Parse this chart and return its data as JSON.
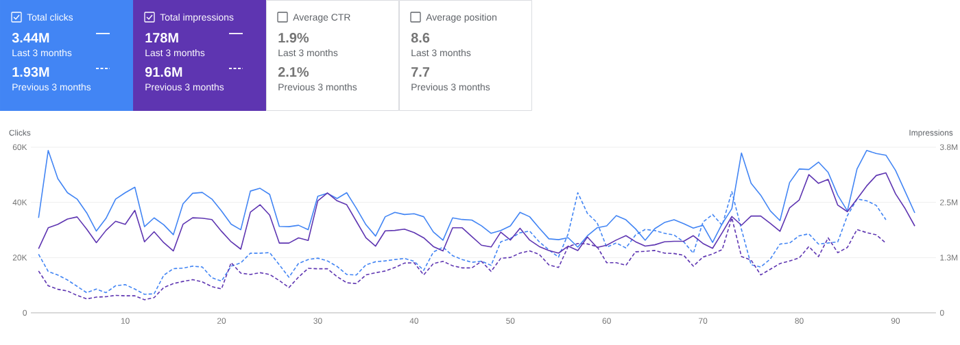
{
  "chart_data": [
    {
      "type": "other",
      "title": "Total clicks",
      "annotations": [
        "3.44M",
        "Last 3 months",
        "1.93M",
        "Previous 3 months"
      ],
      "color": "#4285f4"
    },
    {
      "type": "other",
      "title": "Total impressions",
      "annotations": [
        "178M",
        "Last 3 months",
        "91.6M",
        "Previous 3 months"
      ],
      "color": "#5e35b1"
    },
    {
      "type": "other",
      "title": "Average CTR",
      "annotations": [
        "1.9%",
        "Last 3 months",
        "2.1%",
        "Previous 3 months"
      ]
    },
    {
      "type": "other",
      "title": "Average position",
      "annotations": [
        "8.6",
        "Last 3 months",
        "7.7",
        "Previous 3 months"
      ]
    },
    {
      "type": "line",
      "ylabel": "Clicks",
      "y2label": "Impressions",
      "grid": "y",
      "xlim": [
        0.2,
        94.2
      ],
      "xticks": [
        10,
        20,
        30,
        40,
        50,
        60,
        70,
        80,
        90
      ],
      "ylim": [
        0,
        60000
      ],
      "yticks": [
        0,
        {
          "value": 20000,
          "label": "20K"
        },
        {
          "value": 40000,
          "label": "40K"
        },
        {
          "value": 60000,
          "label": "60K"
        }
      ],
      "y2lim": [
        0,
        3800000
      ],
      "y2ticks": [
        0,
        {
          "value": 1266667,
          "label": "1.3M"
        },
        {
          "value": 2533333,
          "label": "2.5M"
        },
        {
          "value": 3800000,
          "label": "3.8M"
        }
      ],
      "x": [
        1,
        2,
        3,
        4,
        5,
        6,
        7,
        8,
        9,
        10,
        11,
        12,
        13,
        14,
        15,
        16,
        17,
        18,
        19,
        20,
        21,
        22,
        23,
        24,
        25,
        26,
        27,
        28,
        29,
        30,
        31,
        32,
        33,
        34,
        35,
        36,
        37,
        38,
        39,
        40,
        41,
        42,
        43,
        44,
        45,
        46,
        47,
        48,
        49,
        50,
        51,
        52,
        53,
        54,
        55,
        56,
        57,
        58,
        59,
        60,
        61,
        62,
        63,
        64,
        65,
        66,
        67,
        68,
        69,
        70,
        71,
        72,
        73,
        74,
        75,
        76,
        77,
        78,
        79,
        80,
        81,
        82,
        83,
        84,
        85,
        86,
        87,
        88,
        89,
        90,
        91,
        92
      ],
      "series": [
        {
          "color": "#4285f4",
          "line_style": "solid",
          "values": [
            34400.0,
            58800.0,
            48600.0,
            43500.0,
            41200.0,
            36200.0,
            29600.0,
            34200.0,
            41200.0,
            43500.0,
            45500.0,
            31200.0,
            34400.0,
            31900.0,
            28300.0,
            39500.0,
            43300.0,
            43600.0,
            41200.0,
            36900.0,
            32100.0,
            30100.0,
            44100.0,
            45100.0,
            42900.0,
            31300.0,
            31200.0,
            31700.0,
            30100.0,
            42200.0,
            43300.0,
            41400.0,
            43500.0,
            37900.0,
            31900.0,
            27800.0,
            34800.0,
            36400.0,
            35600.0,
            35900.0,
            34800.0,
            29300.0,
            26300.0,
            34400.0,
            33800.0,
            33600.0,
            31500.0,
            28800.0,
            29800.0,
            31500.0,
            36400.0,
            34800.0,
            30700.0,
            26800.0,
            26500.0,
            27200.0,
            23800.0,
            27900.0,
            30800.0,
            31500.0,
            35200.0,
            33700.0,
            30400.0,
            26300.0,
            30500.0,
            32700.0,
            33700.0,
            32300.0,
            30700.0,
            31700.0,
            25500.0,
            32300.0,
            37700.0,
            57900.0,
            46900.0,
            42600.0,
            36900.0,
            33400.0,
            47200.0,
            52100.0,
            51900.0,
            54600.0,
            50900.0,
            42600.0,
            36900.0,
            52100.0,
            58800.0,
            57700.0,
            57100.0,
            51600.0,
            43900.0,
            36200.0
          ]
        },
        {
          "color": "#5e35b1",
          "line_style": "solid",
          "axis": "y2",
          "values": [
            1470000.0,
            1950000.0,
            2030000.0,
            2150000.0,
            2200000.0,
            1920000.0,
            1610000.0,
            1890000.0,
            2100000.0,
            2030000.0,
            2350000.0,
            1630000.0,
            1860000.0,
            1610000.0,
            1420000.0,
            2030000.0,
            2180000.0,
            2170000.0,
            2140000.0,
            1870000.0,
            1630000.0,
            1460000.0,
            2310000.0,
            2480000.0,
            2240000.0,
            1600000.0,
            1600000.0,
            1720000.0,
            1660000.0,
            2570000.0,
            2750000.0,
            2570000.0,
            2480000.0,
            2100000.0,
            1720000.0,
            1530000.0,
            1880000.0,
            1890000.0,
            1920000.0,
            1840000.0,
            1720000.0,
            1520000.0,
            1420000.0,
            1950000.0,
            1950000.0,
            1750000.0,
            1550000.0,
            1510000.0,
            1850000.0,
            1670000.0,
            1940000.0,
            1670000.0,
            1520000.0,
            1430000.0,
            1370000.0,
            1530000.0,
            1430000.0,
            1740000.0,
            1500000.0,
            1550000.0,
            1670000.0,
            1770000.0,
            1630000.0,
            1530000.0,
            1560000.0,
            1630000.0,
            1640000.0,
            1640000.0,
            1770000.0,
            1590000.0,
            1480000.0,
            1840000.0,
            2210000.0,
            2010000.0,
            2220000.0,
            2220000.0,
            2050000.0,
            1870000.0,
            2410000.0,
            2590000.0,
            3170000.0,
            2970000.0,
            3060000.0,
            2470000.0,
            2320000.0,
            2610000.0,
            2910000.0,
            3150000.0,
            3210000.0,
            2730000.0,
            2390000.0,
            1990000.0
          ]
        },
        {
          "color": "#4285f4",
          "line_style": "dashed",
          "values": [
            21200.0,
            15000.0,
            13700.0,
            11900.0,
            9600.0,
            7300.0,
            8600.0,
            7300.0,
            9800.0,
            10200.0,
            8600.0,
            6700.0,
            6900.0,
            13600.0,
            16000.0,
            16200.0,
            16900.0,
            16600.0,
            12700.0,
            11500.0,
            16900.0,
            18100.0,
            21600.0,
            21600.0,
            21800.0,
            17400.0,
            12900.0,
            17900.0,
            19300.0,
            19800.0,
            18800.0,
            16800.0,
            13900.0,
            13700.0,
            17400.0,
            18500.0,
            18800.0,
            19300.0,
            19700.0,
            18700.0,
            15400.0,
            22000.0,
            23800.0,
            20700.0,
            19300.0,
            18300.0,
            18700.0,
            17200.0,
            25700.0,
            26900.0,
            29000.0,
            29600.0,
            25700.0,
            22800.0,
            20200.0,
            28600.0,
            43500.0,
            36000.0,
            32700.0,
            23800.0,
            25300.0,
            23500.0,
            28200.0,
            30200.0,
            29800.0,
            28800.0,
            28200.0,
            25700.0,
            21600.0,
            32900.0,
            35600.0,
            31700.0,
            43900.0,
            30200.0,
            17400.0,
            16600.0,
            19500.0,
            24900.0,
            25300.0,
            27900.0,
            28600.0,
            24900.0,
            25300.0,
            25700.0,
            35200.0,
            41200.0,
            40600.0,
            38900.0,
            33700.0,
            null,
            null,
            null
          ]
        },
        {
          "color": "#5e35b1",
          "line_style": "dashed",
          "axis": "y2",
          "values": [
            960000.0,
            620000.0,
            540000.0,
            500000.0,
            400000.0,
            320000.0,
            360000.0,
            370000.0,
            400000.0,
            390000.0,
            390000.0,
            300000.0,
            350000.0,
            580000.0,
            670000.0,
            720000.0,
            760000.0,
            710000.0,
            600000.0,
            550000.0,
            1150000.0,
            910000.0,
            880000.0,
            920000.0,
            880000.0,
            740000.0,
            580000.0,
            820000.0,
            1020000.0,
            1010000.0,
            1010000.0,
            830000.0,
            690000.0,
            670000.0,
            870000.0,
            920000.0,
            960000.0,
            1040000.0,
            1140000.0,
            1150000.0,
            870000.0,
            1130000.0,
            1180000.0,
            1080000.0,
            1030000.0,
            1030000.0,
            1180000.0,
            950000.0,
            1250000.0,
            1270000.0,
            1370000.0,
            1420000.0,
            1340000.0,
            1100000.0,
            1040000.0,
            1520000.0,
            1590000.0,
            1580000.0,
            1520000.0,
            1150000.0,
            1150000.0,
            1090000.0,
            1400000.0,
            1410000.0,
            1430000.0,
            1370000.0,
            1360000.0,
            1320000.0,
            1070000.0,
            1280000.0,
            1350000.0,
            1450000.0,
            2180000.0,
            1290000.0,
            1210000.0,
            870000.0,
            1000000.0,
            1130000.0,
            1190000.0,
            1260000.0,
            1520000.0,
            1290000.0,
            1720000.0,
            1380000.0,
            1500000.0,
            1910000.0,
            1840000.0,
            1790000.0,
            1600000.0,
            null,
            null,
            null
          ]
        }
      ]
    }
  ]
}
